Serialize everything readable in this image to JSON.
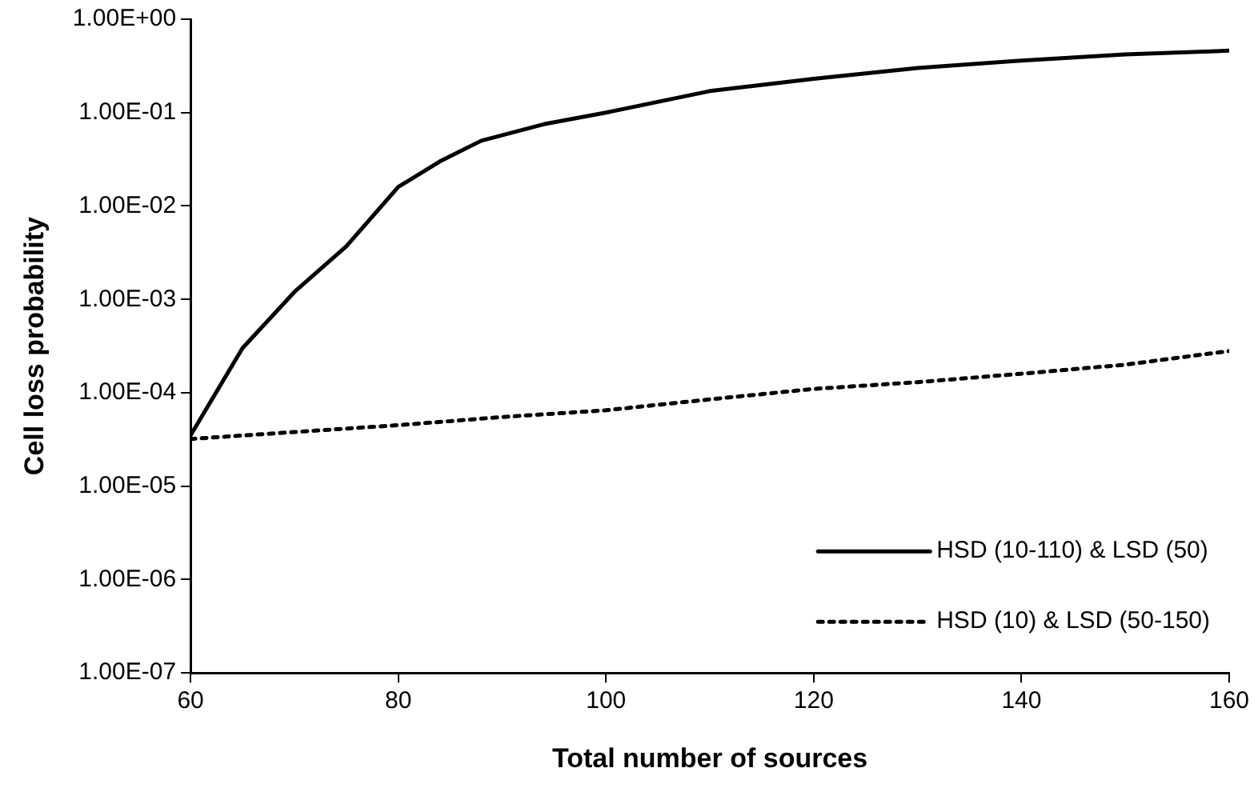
{
  "chart_data": {
    "type": "line",
    "xlabel": "Total number of sources",
    "ylabel": "Cell loss probability",
    "log": "y",
    "xlim": [
      60,
      160
    ],
    "xticks": [
      60,
      80,
      100,
      120,
      140,
      160
    ],
    "ylim": [
      1e-07,
      1
    ],
    "yticks": [
      {
        "value": 1,
        "label": "1.00E+00"
      },
      {
        "value": 0.1,
        "label": "1.00E-01"
      },
      {
        "value": 0.01,
        "label": "1.00E-02"
      },
      {
        "value": 0.001,
        "label": "1.00E-03"
      },
      {
        "value": 0.0001,
        "label": "1.00E-04"
      },
      {
        "value": 1e-05,
        "label": "1.00E-05"
      },
      {
        "value": 1e-06,
        "label": "1.00E-06"
      },
      {
        "value": 1e-07,
        "label": "1.00E-07"
      }
    ],
    "grid": false,
    "legend": "bottom right",
    "marker": "none",
    "series": [
      {
        "name": "HSD (10-110) & LSD (50)",
        "color": "#000000",
        "line_style": "solid",
        "x": [
          60,
          65,
          70,
          75,
          80,
          84,
          88,
          94,
          100,
          110,
          120,
          130,
          140,
          150,
          160
        ],
        "values": [
          3.5e-05,
          0.0003,
          0.0012,
          0.0037,
          0.016,
          0.03,
          0.05,
          0.075,
          0.1,
          0.17,
          0.23,
          0.3,
          0.36,
          0.42,
          0.46
        ]
      },
      {
        "name": "HSD (10) & LSD (50-150)",
        "color": "#000000",
        "line_style": "dotted",
        "x": [
          60,
          70,
          80,
          90,
          100,
          110,
          120,
          130,
          140,
          150,
          160
        ],
        "values": [
          3.2e-05,
          3.8e-05,
          4.5e-05,
          5.5e-05,
          6.5e-05,
          8.5e-05,
          0.00011,
          0.00013,
          0.00016,
          0.0002,
          0.00028
        ]
      }
    ]
  }
}
